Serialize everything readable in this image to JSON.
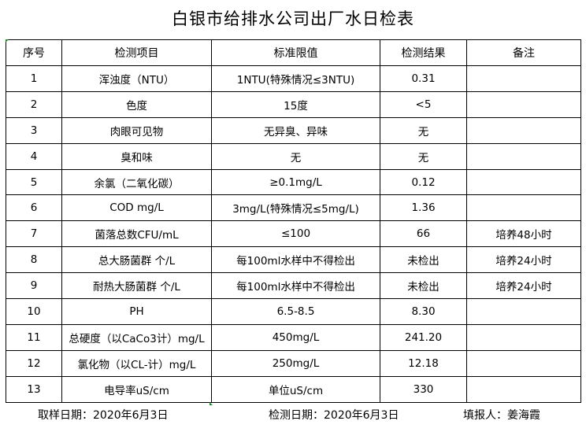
{
  "title": "白银市给排水公司出厂水日检表",
  "table": {
    "headers": [
      "序号",
      "检测项目",
      "标准限值",
      "检测结果",
      "备注"
    ],
    "rows": [
      [
        "1",
        "浑浊度（NTU）",
        "1NTU(特殊情况≤3NTU)",
        "0.31",
        ""
      ],
      [
        "2",
        "色度",
        "15度",
        "<5",
        ""
      ],
      [
        "3",
        "肉眼可见物",
        "无异臭、异味",
        "无",
        ""
      ],
      [
        "4",
        "臭和味",
        "无",
        "无",
        ""
      ],
      [
        "5",
        "余氯（二氧化碳）",
        "≥0.1mg/L",
        "0.12",
        ""
      ],
      [
        "6",
        "COD        mg/L",
        "3mg/L(特殊情况≤5mg/L)",
        "1.36",
        ""
      ],
      [
        "7",
        "菌落总数CFU/mL",
        "≤100",
        "66",
        "培养48小时"
      ],
      [
        "8",
        "总大肠菌群 个/L",
        "每100ml水样中不得检出",
        "未检出",
        "培养24小时"
      ],
      [
        "9",
        "耐热大肠菌群 个/L",
        "每100ml水样中不得检出",
        "未检出",
        "培养24小时"
      ],
      [
        "10",
        "PH",
        "6.5-8.5",
        "8.30",
        ""
      ],
      [
        "11",
        "总硬度（以CaCo3计）mg/L",
        "450mg/L",
        "241.20",
        ""
      ],
      [
        "12",
        "氯化物（以CL-计）mg/L",
        "250mg/L",
        "12.18",
        ""
      ],
      [
        "13",
        "电导率uS/cm",
        "单位uS/cm",
        "330",
        ""
      ]
    ]
  },
  "footer": {
    "sampling_date": "取样日期：2020年6月3日",
    "test_date": "检测日期：2020年6月3日",
    "reporter": "填报人：姜海霞"
  }
}
